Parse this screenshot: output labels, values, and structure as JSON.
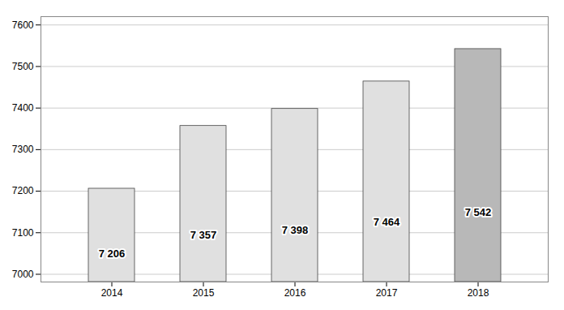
{
  "chart_data": {
    "type": "bar",
    "categories": [
      "2014",
      "2015",
      "2016",
      "2017",
      "2018"
    ],
    "values": [
      7206,
      7357,
      7398,
      7464,
      7542
    ],
    "value_labels": [
      "7 206",
      "7 357",
      "7 398",
      "7 464",
      "7 542"
    ],
    "data_labels": true,
    "colors": [
      "#e0e0e0",
      "#e0e0e0",
      "#e0e0e0",
      "#e0e0e0",
      "#b8b8b8"
    ],
    "ylim": [
      6981.4,
      7620
    ],
    "yticks": [
      7000,
      7100,
      7200,
      7300,
      7400,
      7500,
      7600
    ],
    "grid": true
  }
}
